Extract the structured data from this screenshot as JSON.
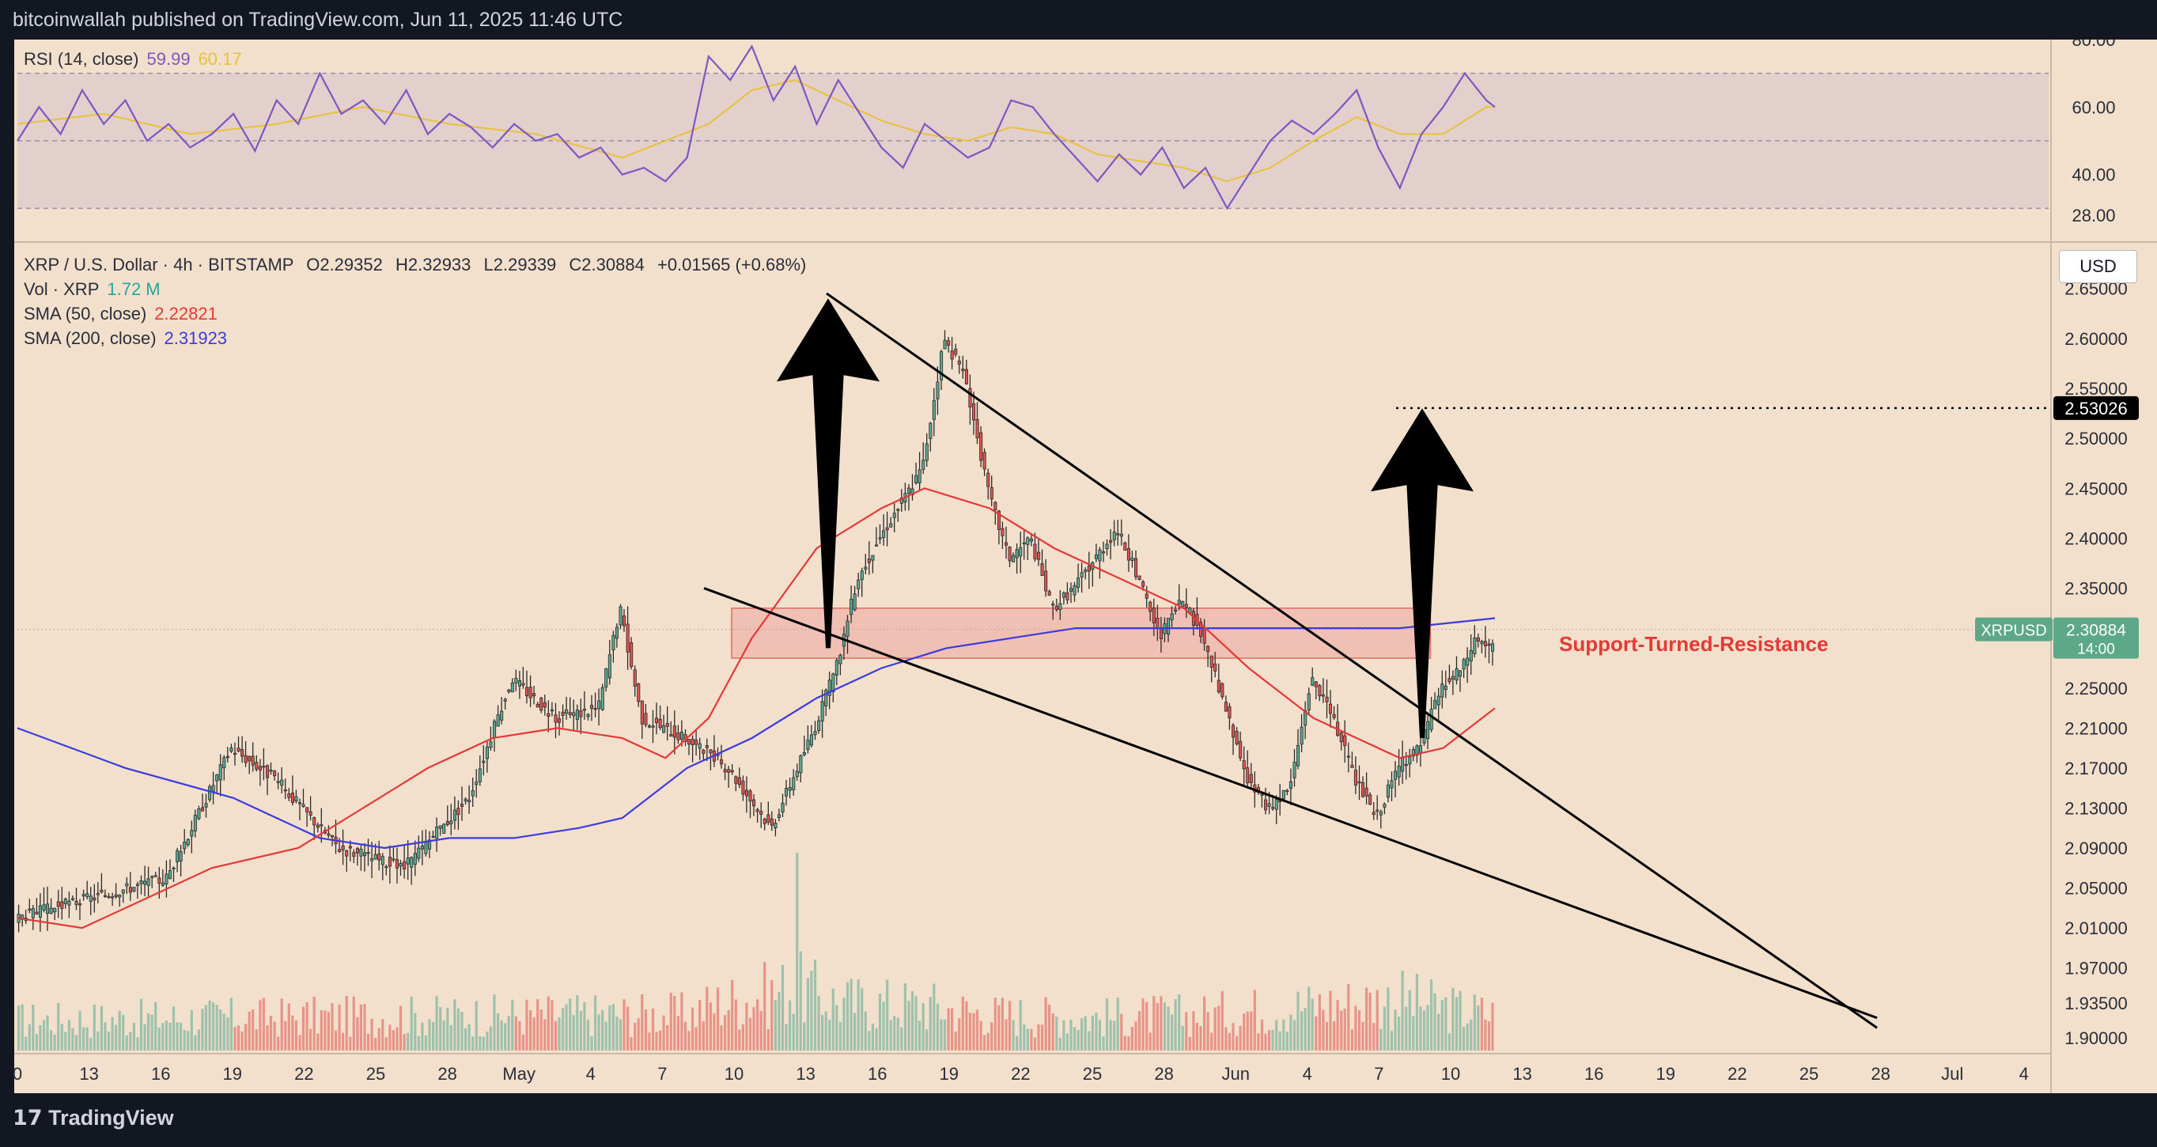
{
  "header": {
    "publish_line": "bitcoinwallah published on TradingView.com, Jun 11, 2025 11:46 UTC"
  },
  "footer": {
    "brand": "TradingView"
  },
  "rsi_legend": {
    "label": "RSI (14, close)",
    "value": "59.99",
    "ma_value": "60.17"
  },
  "main_legend": {
    "symbol_line": "XRP / U.S. Dollar · 4h · BITSTAMP",
    "open": "O2.29352",
    "high": "H2.32933",
    "low": "L2.29339",
    "close": "C2.30884",
    "change": "+0.01565 (+0.68%)",
    "vol_label": "Vol · XRP",
    "vol_value": "1.72 M",
    "sma50_label": "SMA (50, close)",
    "sma50_value": "2.22821",
    "sma200_label": "SMA (200, close)",
    "sma200_value": "2.31923"
  },
  "currency_button": "USD",
  "price_tags": {
    "target": "2.53026",
    "symbol": "XRPUSD",
    "last": "2.30884",
    "countdown": "14:00"
  },
  "annotation": "Support-Turned-Resistance",
  "colors": {
    "background": "#f2e0cc",
    "frame": "#131722",
    "up": "#5aa891",
    "down": "#e0534f",
    "sma50": "#e53939",
    "sma200": "#3b3bdf",
    "rsi": "#7e57c2",
    "rsi_ma": "#e8c23a",
    "zone": "#f09a96",
    "annotation": "#e53935",
    "tag_green": "#5ea88a"
  },
  "chart_data": {
    "type": "candlestick",
    "timeframe": "4h",
    "x_ticks": [
      "0",
      "13",
      "16",
      "19",
      "22",
      "25",
      "28",
      "May",
      "4",
      "7",
      "10",
      "13",
      "16",
      "19",
      "22",
      "25",
      "28",
      "Jun",
      "4",
      "7",
      "10",
      "13",
      "16",
      "19",
      "22",
      "25",
      "28",
      "Jul",
      "4"
    ],
    "y_ticks": [
      "2.65000",
      "2.60000",
      "2.55000",
      "2.50000",
      "2.45000",
      "2.40000",
      "2.35000",
      "2.30000",
      "2.25000",
      "2.21000",
      "2.17000",
      "2.13000",
      "2.09000",
      "2.05000",
      "2.01000",
      "1.97000",
      "1.93500",
      "1.90000"
    ],
    "ylim": [
      1.9,
      2.66
    ],
    "rsi_ticks": [
      "80.00",
      "60.00",
      "40.00",
      "28.00"
    ],
    "rsi_levels": {
      "upper": 70,
      "middle": 50,
      "lower": 30
    },
    "price_path": [
      [
        0,
        2.02
      ],
      [
        7,
        2.06
      ],
      [
        10,
        2.19
      ],
      [
        12,
        2.16
      ],
      [
        15,
        2.09
      ],
      [
        18,
        2.07
      ],
      [
        21,
        2.14
      ],
      [
        23,
        2.26
      ],
      [
        25,
        2.22
      ],
      [
        27,
        2.23
      ],
      [
        28,
        2.33
      ],
      [
        29,
        2.22
      ],
      [
        31,
        2.2
      ],
      [
        33,
        2.17
      ],
      [
        35,
        2.11
      ],
      [
        37,
        2.21
      ],
      [
        38,
        2.27
      ],
      [
        39,
        2.36
      ],
      [
        40,
        2.4
      ],
      [
        42,
        2.47
      ],
      [
        43,
        2.6
      ],
      [
        44,
        2.56
      ],
      [
        45,
        2.45
      ],
      [
        46,
        2.38
      ],
      [
        47,
        2.4
      ],
      [
        48,
        2.33
      ],
      [
        49,
        2.35
      ],
      [
        50,
        2.38
      ],
      [
        51,
        2.41
      ],
      [
        52,
        2.36
      ],
      [
        53,
        2.3
      ],
      [
        54,
        2.34
      ],
      [
        55,
        2.3
      ],
      [
        56,
        2.23
      ],
      [
        57,
        2.16
      ],
      [
        58,
        2.13
      ],
      [
        59,
        2.15
      ],
      [
        60,
        2.26
      ],
      [
        61,
        2.22
      ],
      [
        62,
        2.16
      ],
      [
        63,
        2.12
      ],
      [
        64,
        2.17
      ],
      [
        65,
        2.19
      ],
      [
        66,
        2.25
      ],
      [
        67,
        2.27
      ],
      [
        67.6,
        2.3
      ],
      [
        68.4,
        2.29
      ]
    ],
    "sma200_path": [
      [
        0,
        2.21
      ],
      [
        5,
        2.17
      ],
      [
        10,
        2.14
      ],
      [
        14,
        2.1
      ],
      [
        17,
        2.09
      ],
      [
        20,
        2.1
      ],
      [
        23,
        2.1
      ],
      [
        26,
        2.11
      ],
      [
        28,
        2.12
      ],
      [
        31,
        2.17
      ],
      [
        34,
        2.2
      ],
      [
        37,
        2.24
      ],
      [
        40,
        2.27
      ],
      [
        43,
        2.29
      ],
      [
        46,
        2.3
      ],
      [
        49,
        2.31
      ],
      [
        52,
        2.31
      ],
      [
        56,
        2.31
      ],
      [
        60,
        2.31
      ],
      [
        64,
        2.31
      ],
      [
        68.4,
        2.32
      ]
    ],
    "sma50_path": [
      [
        0,
        2.02
      ],
      [
        3,
        2.01
      ],
      [
        6,
        2.04
      ],
      [
        9,
        2.07
      ],
      [
        13,
        2.09
      ],
      [
        16,
        2.13
      ],
      [
        19,
        2.17
      ],
      [
        22,
        2.2
      ],
      [
        25,
        2.21
      ],
      [
        28,
        2.2
      ],
      [
        30,
        2.18
      ],
      [
        32,
        2.22
      ],
      [
        34,
        2.3
      ],
      [
        37,
        2.39
      ],
      [
        40,
        2.43
      ],
      [
        42,
        2.45
      ],
      [
        45,
        2.43
      ],
      [
        48,
        2.39
      ],
      [
        51,
        2.36
      ],
      [
        54,
        2.33
      ],
      [
        57,
        2.27
      ],
      [
        60,
        2.22
      ],
      [
        62,
        2.2
      ],
      [
        64,
        2.18
      ],
      [
        66,
        2.19
      ],
      [
        68.4,
        2.23
      ]
    ],
    "rsi_path": [
      [
        0,
        50
      ],
      [
        1,
        60
      ],
      [
        2,
        52
      ],
      [
        3,
        65
      ],
      [
        4,
        55
      ],
      [
        5,
        62
      ],
      [
        6,
        50
      ],
      [
        7,
        55
      ],
      [
        8,
        48
      ],
      [
        9,
        52
      ],
      [
        10,
        58
      ],
      [
        11,
        47
      ],
      [
        12,
        62
      ],
      [
        13,
        55
      ],
      [
        14,
        70
      ],
      [
        15,
        58
      ],
      [
        16,
        62
      ],
      [
        17,
        55
      ],
      [
        18,
        65
      ],
      [
        19,
        52
      ],
      [
        20,
        58
      ],
      [
        21,
        54
      ],
      [
        22,
        48
      ],
      [
        23,
        55
      ],
      [
        24,
        50
      ],
      [
        25,
        52
      ],
      [
        26,
        45
      ],
      [
        27,
        48
      ],
      [
        28,
        40
      ],
      [
        29,
        42
      ],
      [
        30,
        38
      ],
      [
        31,
        45
      ],
      [
        32,
        75
      ],
      [
        33,
        68
      ],
      [
        34,
        78
      ],
      [
        35,
        62
      ],
      [
        36,
        72
      ],
      [
        37,
        55
      ],
      [
        38,
        68
      ],
      [
        39,
        58
      ],
      [
        40,
        48
      ],
      [
        41,
        42
      ],
      [
        42,
        55
      ],
      [
        43,
        50
      ],
      [
        44,
        45
      ],
      [
        45,
        48
      ],
      [
        46,
        62
      ],
      [
        47,
        60
      ],
      [
        48,
        52
      ],
      [
        49,
        45
      ],
      [
        50,
        38
      ],
      [
        51,
        46
      ],
      [
        52,
        40
      ],
      [
        53,
        48
      ],
      [
        54,
        36
      ],
      [
        55,
        42
      ],
      [
        56,
        30
      ],
      [
        57,
        40
      ],
      [
        58,
        50
      ],
      [
        59,
        56
      ],
      [
        60,
        52
      ],
      [
        61,
        58
      ],
      [
        62,
        65
      ],
      [
        63,
        48
      ],
      [
        64,
        36
      ],
      [
        65,
        52
      ],
      [
        66,
        60
      ],
      [
        67,
        70
      ],
      [
        68,
        62
      ],
      [
        68.4,
        60
      ]
    ],
    "rsi_ma_path": [
      [
        0,
        55
      ],
      [
        4,
        58
      ],
      [
        8,
        52
      ],
      [
        12,
        55
      ],
      [
        16,
        60
      ],
      [
        20,
        55
      ],
      [
        24,
        52
      ],
      [
        28,
        45
      ],
      [
        32,
        55
      ],
      [
        34,
        65
      ],
      [
        36,
        68
      ],
      [
        38,
        62
      ],
      [
        40,
        56
      ],
      [
        42,
        52
      ],
      [
        44,
        50
      ],
      [
        46,
        54
      ],
      [
        48,
        52
      ],
      [
        50,
        46
      ],
      [
        52,
        44
      ],
      [
        54,
        42
      ],
      [
        56,
        38
      ],
      [
        58,
        42
      ],
      [
        60,
        50
      ],
      [
        62,
        57
      ],
      [
        64,
        52
      ],
      [
        66,
        52
      ],
      [
        68,
        60
      ],
      [
        68.4,
        60
      ]
    ],
    "volume_profile": [
      [
        0,
        1
      ],
      [
        10,
        1.1
      ],
      [
        20,
        1.15
      ],
      [
        28,
        1.2
      ],
      [
        31,
        1.2
      ],
      [
        32,
        1.5
      ],
      [
        35,
        1.9
      ],
      [
        36,
        2.1
      ],
      [
        38,
        1.6
      ],
      [
        42,
        1.5
      ],
      [
        45,
        1.2
      ],
      [
        50,
        1.1
      ],
      [
        55,
        1.2
      ],
      [
        58,
        1.4
      ],
      [
        62,
        1.6
      ],
      [
        64,
        1.7
      ],
      [
        66,
        1.4
      ],
      [
        68.4,
        1.2
      ]
    ],
    "volume_spike_index": 36,
    "overlays": {
      "support_zone": {
        "low": 2.28,
        "high": 2.33,
        "from_tick": 10,
        "to_tick": 19
      },
      "target_level": 2.53026,
      "falling_wedge": {
        "upper_line": [
          [
            13.4,
            2.645
          ],
          [
            28.2,
            1.91
          ]
        ],
        "lower_line": [
          [
            10,
            2.35
          ],
          [
            28.2,
            1.92
          ]
        ]
      },
      "arrows": [
        {
          "tail": [
            13.5,
            2.29
          ],
          "head": [
            13.5,
            2.64
          ]
        },
        {
          "tail": [
            8.6,
            2.2
          ],
          "head": [
            8.6,
            2.53
          ]
        }
      ]
    }
  }
}
